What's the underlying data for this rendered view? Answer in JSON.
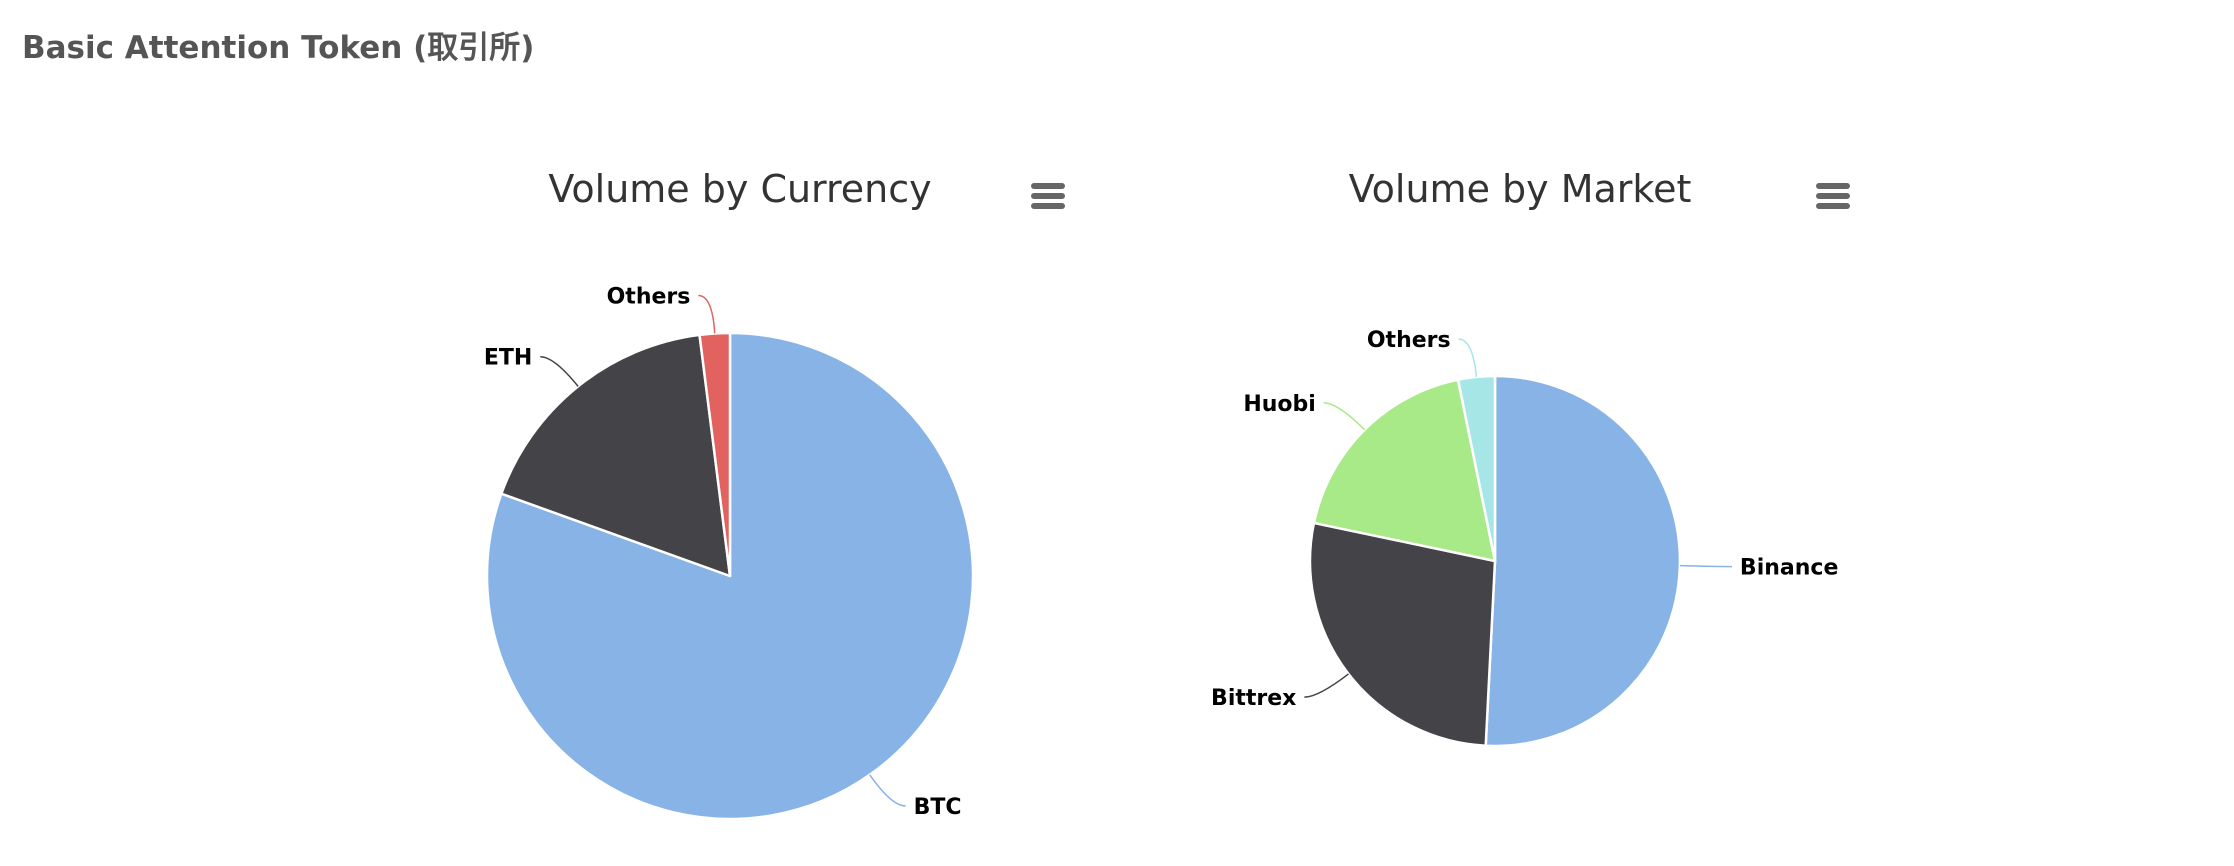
{
  "page": {
    "title": "Basic Attention Token (取引所)"
  },
  "chart_data": [
    {
      "type": "pie",
      "title": "Volume by Currency",
      "menu_icon": "hamburger-menu-icon",
      "series": [
        {
          "slices": [
            {
              "name": "BTC",
              "value": 80.5,
              "color": "#87b3e6"
            },
            {
              "name": "ETH",
              "value": 17.5,
              "color": "#434348"
            },
            {
              "name": "Others",
              "value": 2.0,
              "color": "#e2625f"
            }
          ]
        }
      ]
    },
    {
      "type": "pie",
      "title": "Volume by Market",
      "menu_icon": "hamburger-menu-icon",
      "series": [
        {
          "slices": [
            {
              "name": "Binance",
              "value": 50.8,
              "color": "#87b3e6"
            },
            {
              "name": "Bittrex",
              "value": 27.5,
              "color": "#434348"
            },
            {
              "name": "Huobi",
              "value": 18.5,
              "color": "#a7ea87"
            },
            {
              "name": "Others",
              "value": 3.2,
              "color": "#a6e6e6"
            }
          ]
        }
      ]
    }
  ]
}
